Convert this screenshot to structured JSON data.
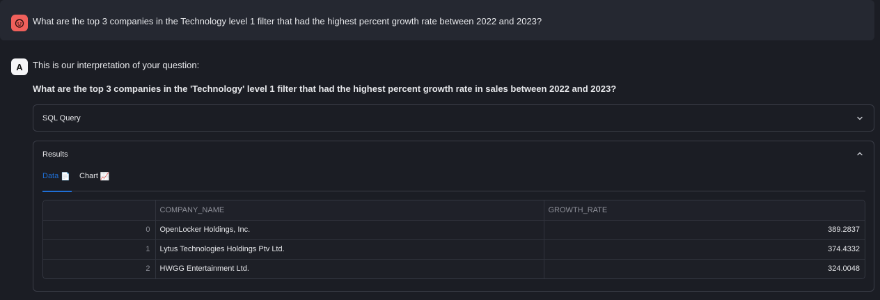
{
  "user_message": {
    "avatar_icon": "robot-face-icon",
    "text": "What are the top 3 companies in the Technology level 1 filter that had the highest percent growth rate between 2022 and 2023?"
  },
  "assistant": {
    "avatar_letter": "A",
    "interpretation_label": "This is our interpretation of your question:",
    "interpreted_question": "What are the top 3 companies in the 'Technology' level 1 filter that had the highest percent growth rate in sales between 2022 and 2023?"
  },
  "sql_expander": {
    "label": "SQL Query",
    "expanded": false
  },
  "results_expander": {
    "label": "Results",
    "expanded": true,
    "tabs": [
      {
        "label": "Data",
        "icon": "📄",
        "active": true
      },
      {
        "label": "Chart",
        "icon": "📈",
        "active": false
      }
    ],
    "table": {
      "columns": [
        "",
        "COMPANY_NAME",
        "GROWTH_RATE"
      ],
      "rows": [
        {
          "index": "0",
          "company": "OpenLocker Holdings, Inc.",
          "growth": "389.2837"
        },
        {
          "index": "1",
          "company": "Lytus Technologies Holdings Ptv Ltd.",
          "growth": "374.4332"
        },
        {
          "index": "2",
          "company": "HWGG Entertainment Ltd.",
          "growth": "324.0048"
        }
      ]
    }
  },
  "colors": {
    "background": "#1b1d24",
    "user_avatar": "#f0605b",
    "accent": "#1f6fd6",
    "border": "#3a3d47"
  }
}
